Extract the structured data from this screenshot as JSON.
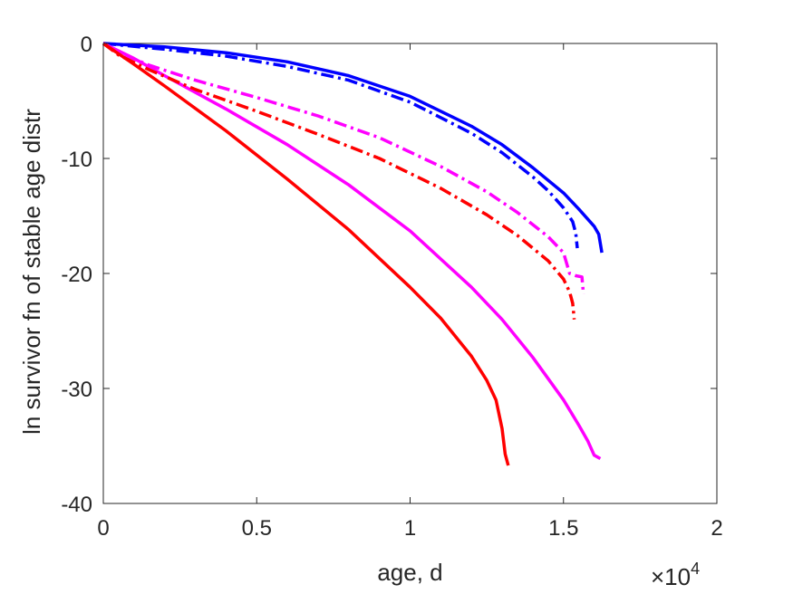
{
  "chart_data": {
    "type": "line",
    "title": "",
    "xlabel": "age, d",
    "ylabel": "ln survivor fn of stable age distr",
    "xlim": [
      0,
      20000
    ],
    "ylim": [
      -40,
      0
    ],
    "x_ticks": [
      0,
      5000,
      10000,
      15000,
      20000
    ],
    "x_tick_labels": [
      "0",
      "0.5",
      "1",
      "1.5",
      "2"
    ],
    "x_multiplier": {
      "base": "×10",
      "exponent": "4"
    },
    "y_ticks": [
      0,
      -10,
      -20,
      -30,
      -40
    ],
    "y_tick_labels": [
      "0",
      "-10",
      "-20",
      "-30",
      "-40"
    ],
    "grid": false,
    "legend": "none",
    "series": [
      {
        "color": "#0000ff",
        "style": "solid",
        "points": [
          [
            0,
            0
          ],
          [
            2000,
            -0.3
          ],
          [
            4000,
            -0.8
          ],
          [
            6000,
            -1.6
          ],
          [
            8000,
            -2.8
          ],
          [
            10000,
            -4.6
          ],
          [
            12000,
            -7.2
          ],
          [
            13000,
            -8.8
          ],
          [
            14000,
            -10.8
          ],
          [
            15000,
            -13.0
          ],
          [
            15500,
            -14.4
          ],
          [
            16000,
            -15.9
          ],
          [
            16150,
            -16.6
          ],
          [
            16250,
            -18.2
          ]
        ]
      },
      {
        "color": "#0000ff",
        "style": "dashdot",
        "points": [
          [
            0,
            0
          ],
          [
            2000,
            -0.5
          ],
          [
            4000,
            -1.1
          ],
          [
            6000,
            -2.0
          ],
          [
            8000,
            -3.2
          ],
          [
            10000,
            -5.1
          ],
          [
            12000,
            -7.8
          ],
          [
            13000,
            -9.5
          ],
          [
            14000,
            -11.6
          ],
          [
            14500,
            -12.8
          ],
          [
            15000,
            -14.3
          ],
          [
            15300,
            -15.5
          ],
          [
            15400,
            -16.5
          ],
          [
            15450,
            -17.8
          ]
        ]
      },
      {
        "color": "#ff00ff",
        "style": "solid",
        "points": [
          [
            0,
            0
          ],
          [
            1000,
            -1.3
          ],
          [
            2000,
            -2.8
          ],
          [
            4000,
            -5.7
          ],
          [
            6000,
            -8.8
          ],
          [
            8000,
            -12.3
          ],
          [
            10000,
            -16.3
          ],
          [
            12000,
            -21.2
          ],
          [
            13000,
            -24.0
          ],
          [
            14000,
            -27.3
          ],
          [
            15000,
            -31.0
          ],
          [
            15500,
            -33.2
          ],
          [
            15800,
            -34.6
          ],
          [
            16000,
            -35.8
          ],
          [
            16200,
            -36.1
          ]
        ]
      },
      {
        "color": "#ff00ff",
        "style": "dashdot",
        "points": [
          [
            0,
            0
          ],
          [
            500,
            -0.8
          ],
          [
            1500,
            -1.9
          ],
          [
            3000,
            -3.2
          ],
          [
            5000,
            -4.7
          ],
          [
            7000,
            -6.3
          ],
          [
            9000,
            -8.2
          ],
          [
            11000,
            -10.7
          ],
          [
            12500,
            -12.9
          ],
          [
            13500,
            -14.7
          ],
          [
            14500,
            -16.8
          ],
          [
            15000,
            -18.2
          ],
          [
            15200,
            -20.0
          ],
          [
            15400,
            -20.2
          ],
          [
            15600,
            -20.3
          ],
          [
            15650,
            -21.8
          ]
        ]
      },
      {
        "color": "#ff0000",
        "style": "dashdot",
        "points": [
          [
            0,
            0
          ],
          [
            500,
            -1.0
          ],
          [
            1500,
            -2.3
          ],
          [
            3000,
            -4.0
          ],
          [
            5000,
            -5.9
          ],
          [
            7000,
            -7.9
          ],
          [
            9000,
            -10.0
          ],
          [
            11000,
            -12.6
          ],
          [
            12500,
            -14.9
          ],
          [
            13500,
            -16.7
          ],
          [
            14500,
            -18.9
          ],
          [
            15000,
            -20.5
          ],
          [
            15200,
            -21.6
          ],
          [
            15300,
            -22.6
          ],
          [
            15350,
            -24.0
          ]
        ]
      },
      {
        "color": "#ff0000",
        "style": "solid",
        "points": [
          [
            0,
            0
          ],
          [
            1000,
            -1.8
          ],
          [
            2000,
            -3.7
          ],
          [
            4000,
            -7.6
          ],
          [
            6000,
            -11.8
          ],
          [
            8000,
            -16.2
          ],
          [
            10000,
            -21.2
          ],
          [
            11000,
            -23.9
          ],
          [
            12000,
            -27.2
          ],
          [
            12500,
            -29.3
          ],
          [
            12800,
            -31.0
          ],
          [
            13000,
            -33.5
          ],
          [
            13100,
            -35.7
          ],
          [
            13200,
            -36.7
          ]
        ]
      }
    ]
  }
}
